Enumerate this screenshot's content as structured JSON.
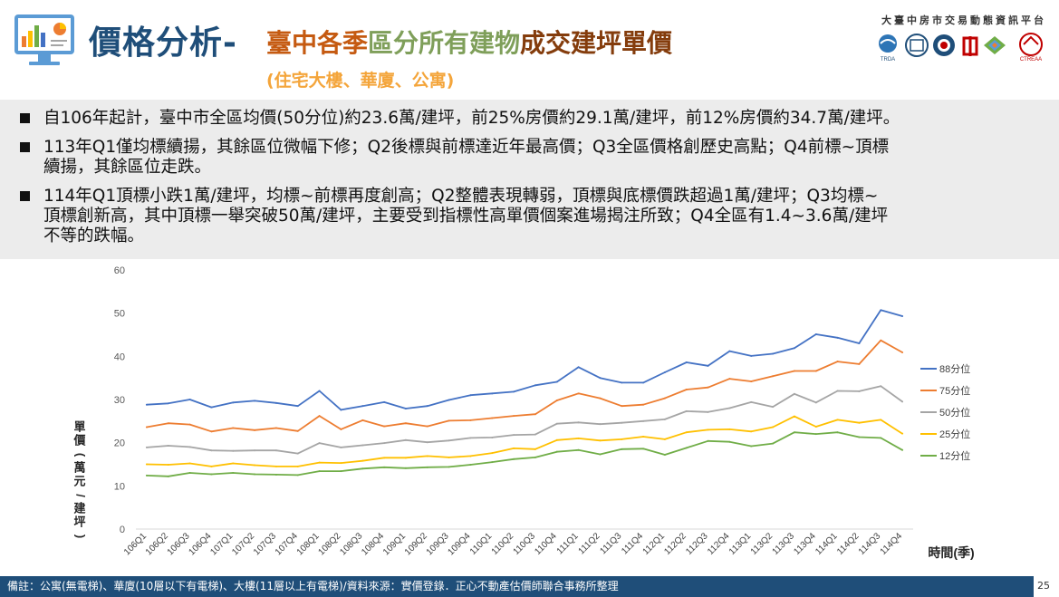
{
  "header": {
    "title_main": "價格分析-",
    "title_sub_1": "臺中各季",
    "title_sub_2": "區分所有建物",
    "title_sub_3": "成交建坪單價",
    "title_paren": "(住宅大樓、華廈、公寓)",
    "platform_name": "大臺中房市交易動態資訊平台",
    "partner_logo_text_1": "TRDA",
    "partner_logo_text_2": "CTREAA"
  },
  "bullets": [
    "自106年起計，臺中市全區均價(50分位)約23.6萬/建坪，前25%房價約29.1萬/建坪，前12%房價約34.7萬/建坪。",
    "113年Q1僅均標續揚，其餘區位微幅下修；Q2後標與前標達近年最高價；Q3全區價格創歷史高點；Q4前標~頂標\n續揚，其餘區位走跌。",
    "114年Q1頂標小跌1萬/建坪，均標~前標再度創高；Q2整體表現轉弱，頂標與底標價跌超過1萬/建坪；Q3均標~\n頂標創新高，其中頂標一舉突破50萬/建坪，主要受到指標性高單價個案進場揭注所致；Q4全區有1.4~3.6萬/建坪\n不等的跌幅。"
  ],
  "chart_data": {
    "type": "line",
    "ylabel": "單價(萬元/建坪)",
    "xlabel": "時間(季)",
    "ylim": [
      0,
      60
    ],
    "yticks": [
      0,
      10,
      20,
      30,
      40,
      50,
      60
    ],
    "grid": false,
    "legend_position": "right",
    "categories": [
      "106Q1",
      "106Q2",
      "106Q3",
      "106Q4",
      "107Q1",
      "107Q2",
      "107Q3",
      "107Q4",
      "108Q1",
      "108Q2",
      "108Q3",
      "108Q4",
      "109Q1",
      "109Q2",
      "109Q3",
      "109Q4",
      "110Q1",
      "110Q2",
      "110Q3",
      "110Q4",
      "111Q1",
      "111Q2",
      "111Q3",
      "111Q4",
      "112Q1",
      "112Q2",
      "112Q3",
      "112Q4",
      "113Q1",
      "113Q2",
      "113Q3",
      "113Q4",
      "114Q1",
      "114Q2",
      "114Q3",
      "114Q4"
    ],
    "series": [
      {
        "name": "88分位",
        "color": "#4472c4",
        "values": [
          28.8,
          29.1,
          30.0,
          28.2,
          29.3,
          29.7,
          29.2,
          28.5,
          32.0,
          27.6,
          28.5,
          29.4,
          27.9,
          28.5,
          29.9,
          31.0,
          31.4,
          31.8,
          33.3,
          34.1,
          37.5,
          35.0,
          33.9,
          33.9,
          36.3,
          38.6,
          37.8,
          41.2,
          40.1,
          40.6,
          41.9,
          45.1,
          44.3,
          43.0,
          50.7,
          49.3
        ]
      },
      {
        "name": "75分位",
        "color": "#ed7d31",
        "values": [
          23.6,
          24.5,
          24.2,
          22.6,
          23.4,
          22.9,
          23.4,
          22.7,
          26.2,
          23.1,
          25.2,
          23.8,
          24.5,
          23.8,
          25.1,
          25.2,
          25.7,
          26.2,
          26.6,
          29.8,
          31.4,
          30.3,
          28.5,
          28.8,
          30.3,
          32.3,
          32.8,
          34.8,
          34.2,
          35.4,
          36.6,
          36.6,
          38.8,
          38.2,
          43.7,
          40.9
        ]
      },
      {
        "name": "50分位",
        "color": "#a5a5a5",
        "values": [
          18.9,
          19.3,
          19.0,
          18.2,
          18.1,
          18.2,
          18.2,
          17.5,
          19.9,
          18.9,
          19.4,
          19.9,
          20.6,
          20.1,
          20.5,
          21.1,
          21.2,
          21.8,
          21.9,
          24.4,
          24.7,
          24.3,
          24.6,
          25.0,
          25.4,
          27.3,
          27.1,
          28.0,
          29.4,
          28.3,
          31.3,
          29.3,
          32.0,
          31.9,
          33.1,
          29.5
        ]
      },
      {
        "name": "25分位",
        "color": "#ffc000",
        "values": [
          15.0,
          14.9,
          15.2,
          14.5,
          15.2,
          14.8,
          14.5,
          14.5,
          15.4,
          15.3,
          15.8,
          16.5,
          16.5,
          16.9,
          16.6,
          16.9,
          17.6,
          18.7,
          18.5,
          20.6,
          21.0,
          20.5,
          20.8,
          21.4,
          20.8,
          22.4,
          23.0,
          23.1,
          22.6,
          23.6,
          26.1,
          23.7,
          25.3,
          24.6,
          25.3,
          22.1
        ]
      },
      {
        "name": "12分位",
        "color": "#70ad47",
        "values": [
          12.4,
          12.2,
          13.0,
          12.7,
          13.0,
          12.7,
          12.6,
          12.5,
          13.4,
          13.4,
          14.0,
          14.3,
          14.1,
          14.3,
          14.4,
          14.9,
          15.5,
          16.2,
          16.6,
          17.9,
          18.3,
          17.3,
          18.5,
          18.6,
          17.2,
          18.8,
          20.4,
          20.2,
          19.2,
          19.8,
          22.4,
          22.0,
          22.4,
          21.3,
          21.1,
          18.3
        ]
      }
    ]
  },
  "footer": {
    "note": "備註：公寓(無電梯)、華廈(10層以下有電梯)、大樓(11層以上有電梯)/資料來源：實價登錄．正心不動產估價師聯合事務所整理",
    "page_number": "25"
  }
}
